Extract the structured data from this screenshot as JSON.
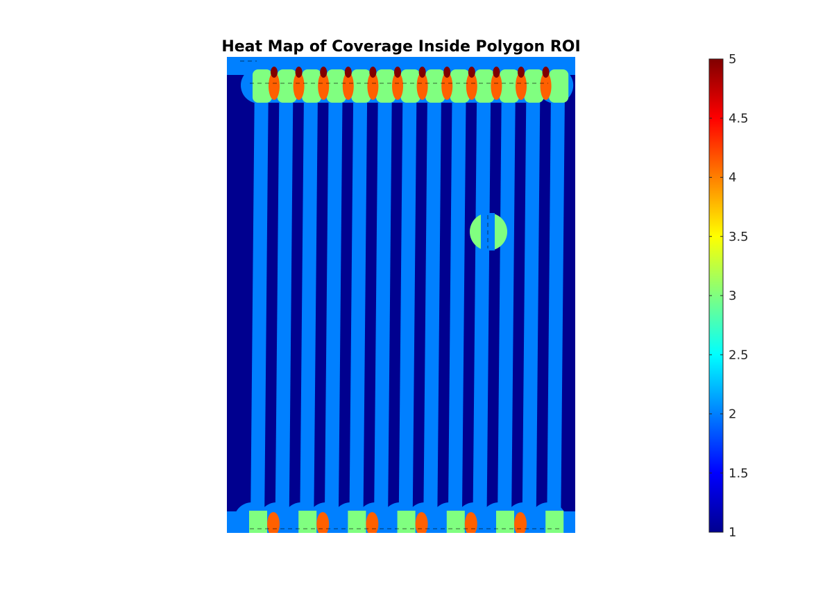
{
  "chart_data": {
    "type": "heatmap",
    "title": "Heat Map of Coverage Inside Polygon ROI",
    "colormap": "jet",
    "clim": [
      1,
      5
    ],
    "colorbar": {
      "placement": "right",
      "ticks": [
        1,
        1.5,
        2,
        2.5,
        3,
        3.5,
        4,
        4.5,
        5
      ],
      "tick_labels": [
        "1",
        "1.5",
        "2",
        "2.5",
        "3",
        "3.5",
        "4",
        "4.5",
        "5"
      ]
    },
    "axes_visible": false,
    "grid": false,
    "background_value": 1,
    "sweep_strip_value": 2,
    "strip_count": 13,
    "turn_overlap_value": 3,
    "turn_peak_value": 4,
    "max_value": 5,
    "isolated_overlap_value": 3,
    "colors": {
      "value_1": "#00008f",
      "value_2": "#0080ff",
      "value_3": "#80ff80",
      "value_4": "#ff6000",
      "value_5": "#800000"
    }
  }
}
